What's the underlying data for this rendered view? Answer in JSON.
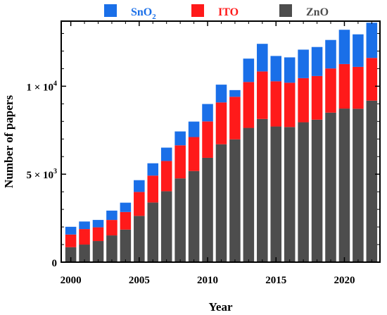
{
  "chart_data": {
    "type": "bar",
    "stacked": true,
    "title": "",
    "xlabel": "Year",
    "ylabel": "Number of papers",
    "xlim": [
      1999.3,
      2022.6
    ],
    "ylim": [
      0,
      13700
    ],
    "x_ticks": [
      2000,
      2005,
      2010,
      2015,
      2020
    ],
    "y_ticks": [
      {
        "value": 0,
        "base": "0",
        "exp": ""
      },
      {
        "value": 5000,
        "base": "5 × 10",
        "exp": "3"
      },
      {
        "value": 10000,
        "base": "1 × 10",
        "exp": "4"
      }
    ],
    "legend_position": "top",
    "categories": [
      2000,
      2001,
      2002,
      2003,
      2004,
      2005,
      2006,
      2007,
      2008,
      2009,
      2010,
      2011,
      2012,
      2013,
      2014,
      2015,
      2016,
      2017,
      2018,
      2019,
      2020,
      2021,
      2022
    ],
    "series": [
      {
        "name": "ZnO",
        "color": "#4d4d4d",
        "values": [
          850,
          1000,
          1200,
          1520,
          1850,
          2630,
          3390,
          4030,
          4760,
          5180,
          5930,
          6700,
          6980,
          7630,
          8140,
          7710,
          7680,
          7950,
          8100,
          8500,
          8730,
          8720,
          9180
        ]
      },
      {
        "name": "ITO",
        "color": "#ff1a1a",
        "values": [
          720,
          880,
          780,
          880,
          1000,
          1360,
          1530,
          1720,
          1880,
          1930,
          2070,
          2380,
          2420,
          2610,
          2700,
          2570,
          2520,
          2510,
          2480,
          2510,
          2530,
          2380,
          2430
        ]
      },
      {
        "name": "SnO",
        "name_sub": "2",
        "color": "#1a6fe8",
        "values": [
          440,
          430,
          420,
          530,
          530,
          670,
          700,
          760,
          790,
          880,
          990,
          1010,
          380,
          1330,
          1570,
          1440,
          1440,
          1620,
          1650,
          1620,
          1950,
          1850,
          2000
        ]
      }
    ]
  }
}
